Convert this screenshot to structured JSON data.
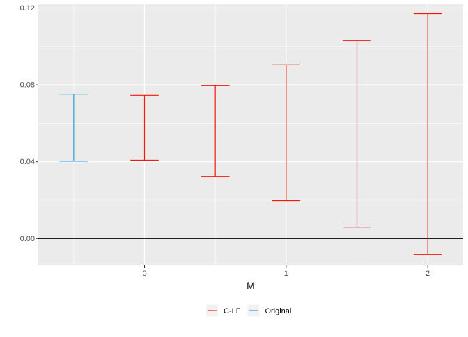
{
  "chart_data": {
    "type": "errorbar",
    "xlabel": "M",
    "xlabel_overline": true,
    "ylabel": "",
    "title": "",
    "x_ticks": [
      0,
      1,
      2
    ],
    "x_tick_labels": [
      "0",
      "1",
      "2"
    ],
    "xlim": [
      -0.75,
      2.25
    ],
    "y_ticks": [
      0,
      0.04,
      0.08,
      0.12
    ],
    "y_tick_labels": [
      "0.00",
      "0.04",
      "0.08",
      "0.12"
    ],
    "ylim": [
      -0.014,
      0.122
    ],
    "reference_line_y": 0,
    "grid": true,
    "legend_position": "bottom",
    "series": [
      {
        "name": "C-LF",
        "color": "#F8160D",
        "points": [
          {
            "x": 0,
            "low": 0.0408,
            "high": 0.0745
          },
          {
            "x": 0.5,
            "low": 0.0322,
            "high": 0.0796
          },
          {
            "x": 1,
            "low": 0.0198,
            "high": 0.0904
          },
          {
            "x": 1.5,
            "low": 0.006,
            "high": 0.1031
          },
          {
            "x": 2,
            "low": -0.0083,
            "high": 0.1171
          }
        ]
      },
      {
        "name": "Original",
        "color": "#2B9CD8",
        "points": [
          {
            "x": -0.5,
            "low": 0.0403,
            "high": 0.0751
          }
        ]
      }
    ]
  }
}
